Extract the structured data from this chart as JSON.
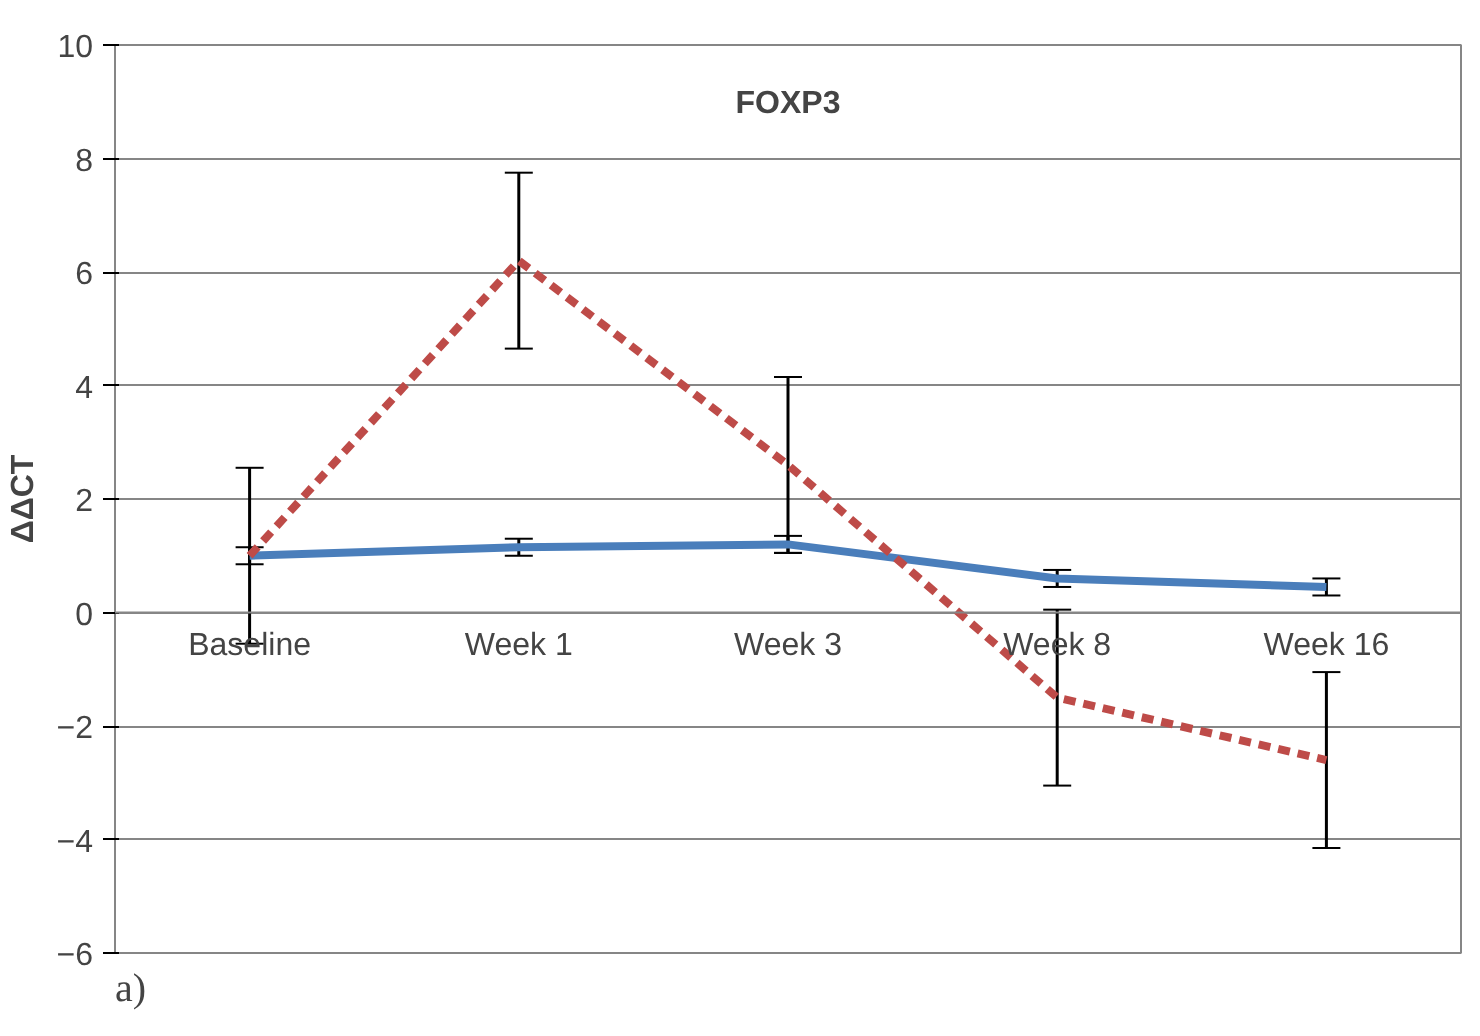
{
  "chart_data": {
    "type": "line",
    "title": "FOXP3",
    "ylabel": "ΔΔCT",
    "categories": [
      "Baseline",
      "Week 1",
      "Week 3",
      "Week 8",
      "Week 16"
    ],
    "series": [
      {
        "color": "#4a7ebb",
        "values": [
          1.0,
          1.15,
          1.2,
          0.6,
          0.45
        ],
        "errors": [
          0.15,
          0.15,
          0.15,
          0.15,
          0.15
        ],
        "line_style": "solid"
      },
      {
        "color": "#be4b48",
        "values": [
          1.0,
          6.2,
          2.6,
          -1.5,
          -2.6
        ],
        "errors": [
          1.55,
          1.55,
          1.55,
          1.55,
          1.55
        ],
        "line_style": "dashed"
      }
    ],
    "ylim": [
      -6,
      10
    ],
    "yticks": [
      -6,
      -4,
      -2,
      0,
      2,
      4,
      6,
      8,
      10
    ],
    "grid": "y",
    "marker": "none",
    "annotations": [
      "a)"
    ]
  }
}
